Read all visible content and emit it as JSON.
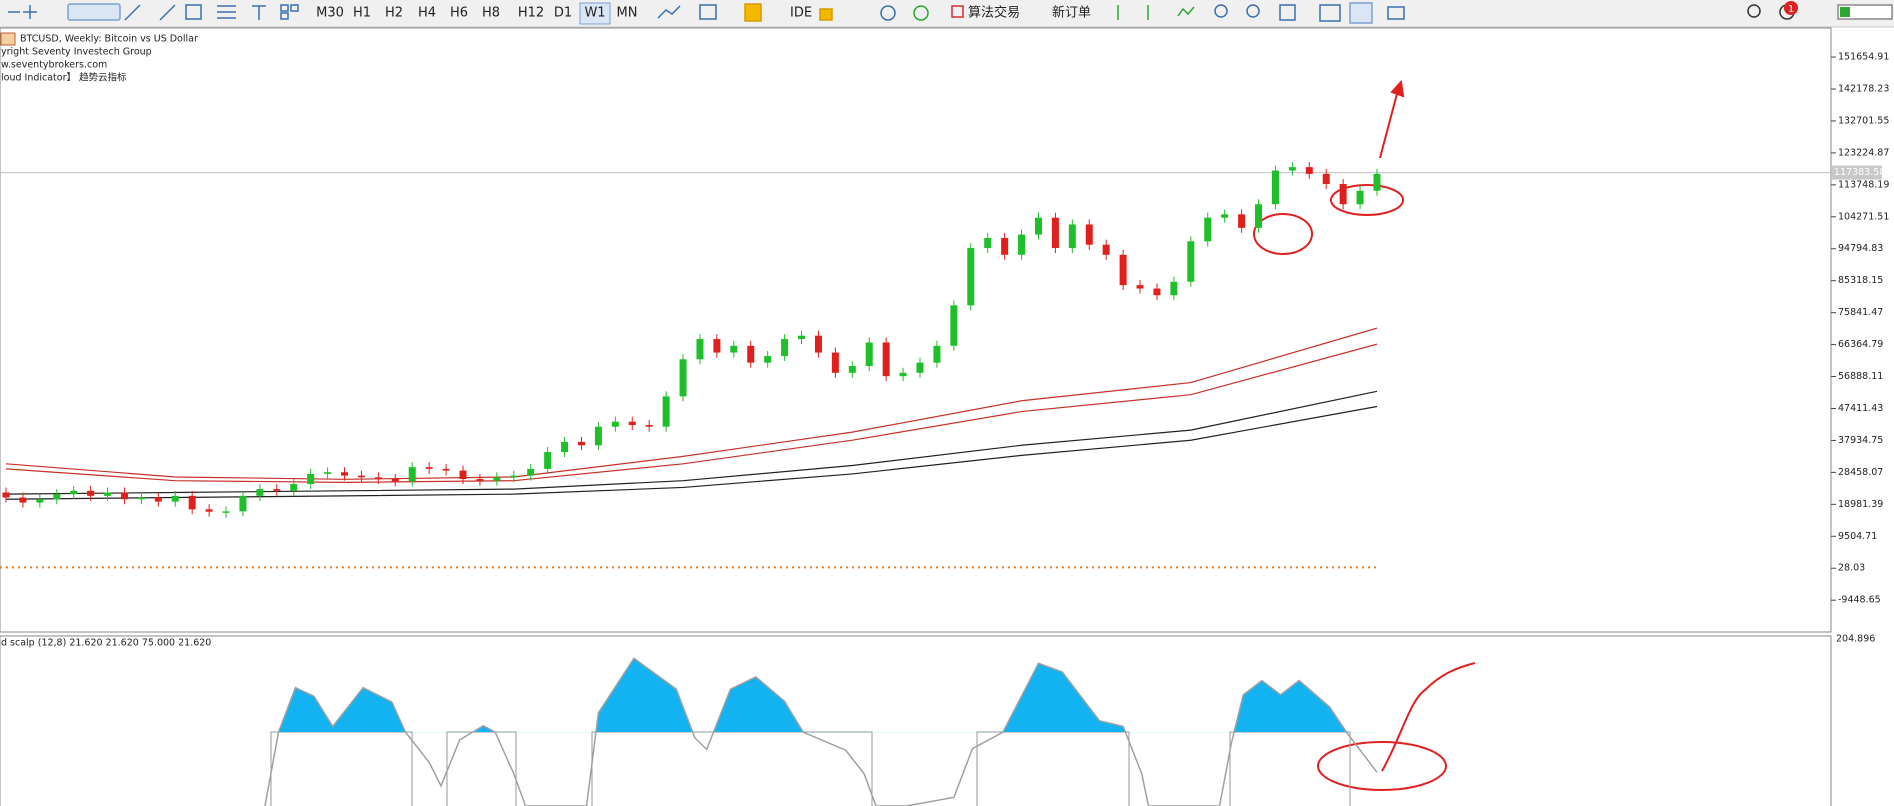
{
  "toolbar": {
    "timeframes": [
      "M30",
      "H1",
      "H2",
      "H4",
      "H6",
      "H8",
      "H12",
      "D1",
      "W1",
      "MN"
    ],
    "active_timeframe": "W1",
    "buttons": [
      "IDE",
      "算法交易",
      "新订单"
    ],
    "badge": "1"
  },
  "main_chart": {
    "type": "candlestick",
    "info": [
      "BTCUSD, Weekly:  Bitcoin vs US Dollar",
      "yright Seventy Investech Group",
      "w.seventybrokers.com",
      "loud Indicator】 趋势云指标"
    ],
    "first_open": 22500,
    "closes": [
      21000,
      19500,
      20500,
      22000,
      23000,
      21500,
      22500,
      20500,
      21000,
      19800,
      21500,
      17500,
      16800,
      16900,
      21500,
      23500,
      23000,
      25000,
      28000,
      28500,
      27500,
      27000,
      26500,
      25800,
      30000,
      29500,
      29000,
      26500,
      26000,
      27000,
      27500,
      29500,
      34500,
      37500,
      36500,
      42000,
      43500,
      42500,
      42000,
      51000,
      62000,
      68000,
      64000,
      66000,
      61000,
      63000,
      68000,
      69000,
      64000,
      58000,
      60000,
      67000,
      57000,
      58000,
      61000,
      66000,
      78000,
      95000,
      98000,
      93000,
      99000,
      104000,
      95000,
      102000,
      96000,
      93000,
      84000,
      83000,
      81000,
      85000,
      97000,
      104000,
      105000,
      101000,
      108000,
      118000,
      119000,
      117000,
      114000,
      108000,
      112000,
      117000
    ],
    "up_color": "#1fbf2a",
    "down_color": "#e0201c",
    "ylim": [
      -18885,
      160270
    ],
    "yticks": [
      151654.91,
      142178.23,
      132701.55,
      123224.87,
      113748.19,
      104271.51,
      94794.83,
      85318.15,
      75841.47,
      66364.79,
      56888.11,
      47411.43,
      37934.75,
      28458.07,
      18981.39,
      9504.71,
      28.03,
      -9448.65
    ],
    "current_price": 117383.58,
    "level_line": 300,
    "moving_averages": [
      {
        "color": "#c8302a",
        "x": [
          0,
          10,
          20,
          30,
          40,
          50,
          60,
          70,
          81
        ],
        "values": [
          31000,
          27100,
          26400,
          27100,
          33200,
          40400,
          49700,
          55100,
          71250
        ]
      },
      {
        "color": "#c8302a",
        "x": [
          0,
          10,
          20,
          30,
          40,
          50,
          60,
          70,
          81
        ],
        "values": [
          29500,
          26000,
          25500,
          26000,
          31000,
          38000,
          46500,
          51500,
          66500
        ]
      },
      {
        "color": "#222222",
        "x": [
          0,
          10,
          20,
          30,
          40,
          50,
          60,
          70,
          81
        ],
        "values": [
          22000,
          22500,
          23000,
          23500,
          26000,
          30500,
          36500,
          41000,
          52500
        ]
      },
      {
        "color": "#222222",
        "x": [
          0,
          10,
          20,
          30,
          40,
          50,
          60,
          70,
          81
        ],
        "values": [
          20500,
          21000,
          21500,
          22000,
          24000,
          28000,
          33500,
          38000,
          48000
        ]
      }
    ]
  },
  "indicator": {
    "type": "area",
    "label": "d scalp (12,8) 21.620 21.620 75.000 21.620",
    "top_label": 204.896,
    "ylim": [
      -28,
      204.896
    ],
    "level": 75,
    "fill_color": "#12b3f0",
    "line_color": "#a0a0a0",
    "x": [
      15.3,
      16.1,
      17.1,
      18.2,
      19.3,
      21.1,
      22.8,
      23.6,
      25.0,
      25.7,
      26.8,
      28.2,
      28.9,
      30.0,
      30.7,
      34.3,
      35.0,
      37.1,
      39.6,
      40.7,
      41.4,
      42.8,
      44.3,
      46.0,
      47.1,
      49.6,
      50.7,
      51.4,
      53.2,
      56.0,
      57.1,
      58.9,
      61.0,
      62.4,
      64.6,
      66.0,
      67.1,
      67.5,
      71.7,
      72.4,
      73.1,
      74.2,
      75.3,
      76.4,
      78.2,
      79.2,
      81.0
    ],
    "values": [
      -28,
      75,
      137,
      125,
      83,
      137,
      117,
      75,
      33,
      0,
      64,
      84,
      75,
      17,
      -28,
      -28,
      102,
      178,
      135,
      67,
      51,
      135,
      152,
      118,
      75,
      50,
      17,
      -28,
      -28,
      -16,
      52,
      75,
      171,
      159,
      91,
      83,
      17,
      -28,
      -28,
      60,
      127,
      147,
      127,
      147,
      110,
      75,
      19
    ]
  }
}
